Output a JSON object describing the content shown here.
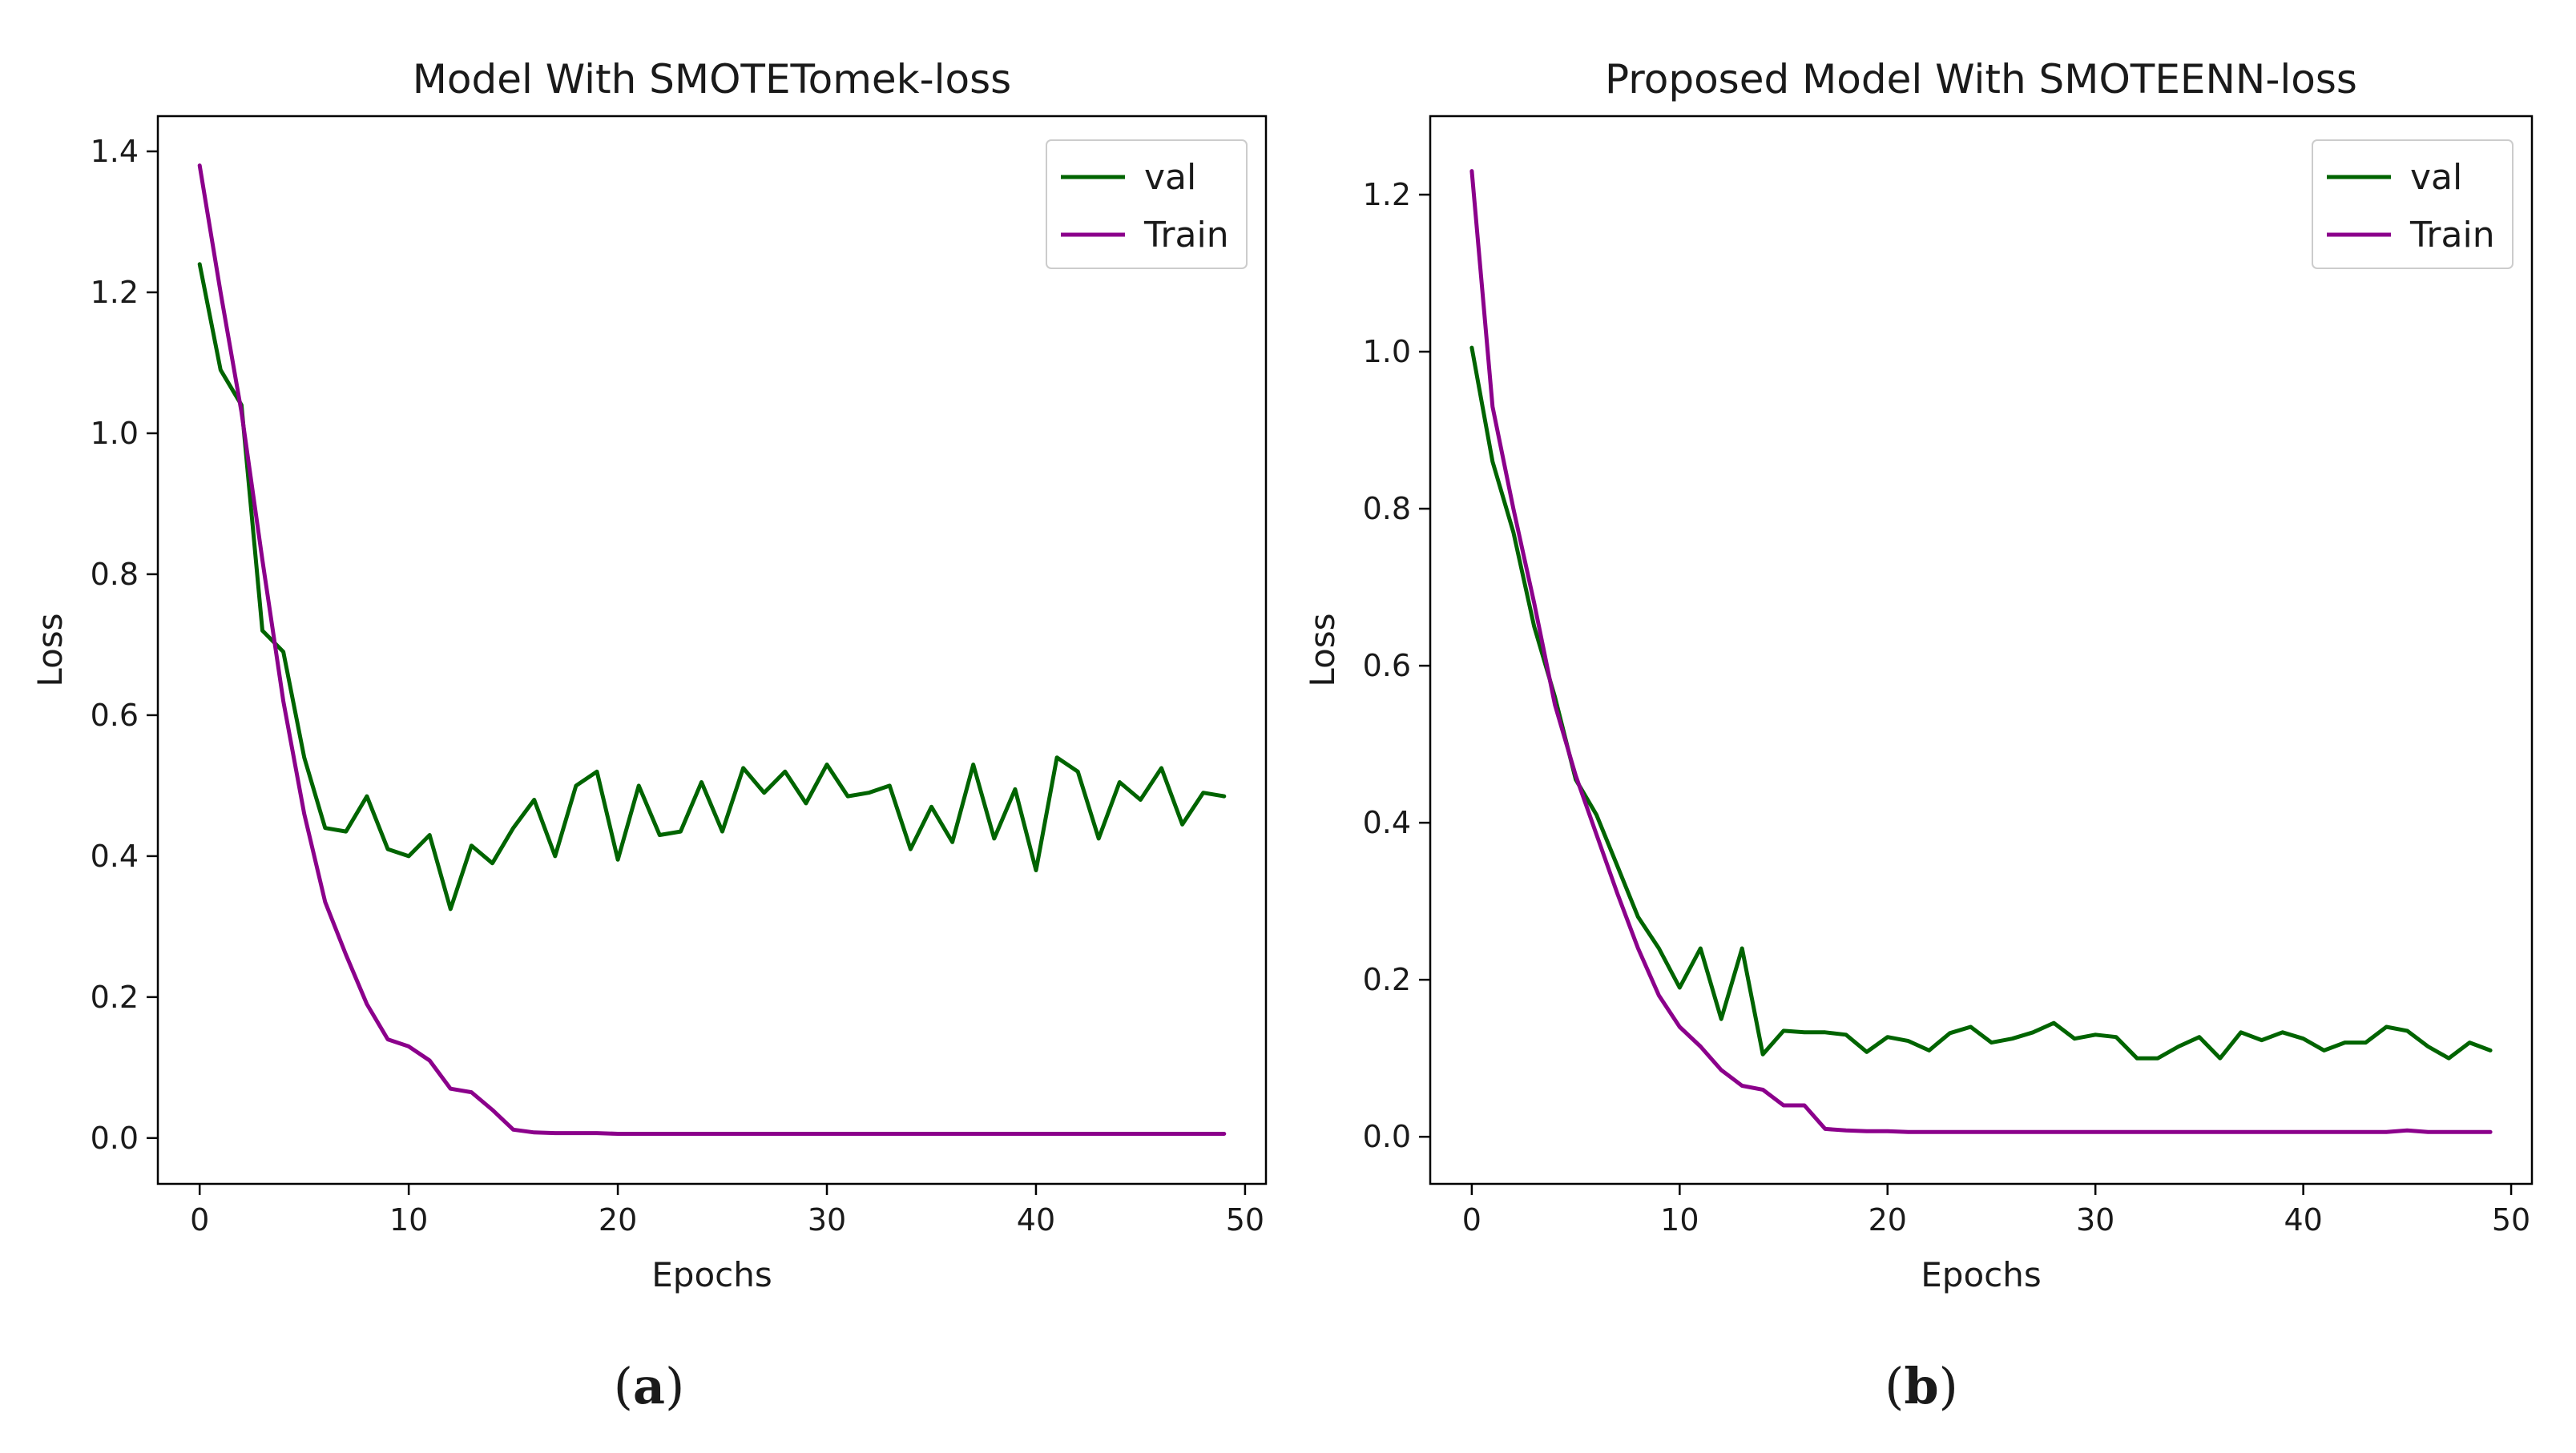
{
  "colors": {
    "val": "#006400",
    "train": "#8b008b",
    "axis": "#000000"
  },
  "chart_data": [
    {
      "id": "a",
      "type": "line",
      "title": "Model With SMOTETomek-loss",
      "xlabel": "Epochs",
      "ylabel": "Loss",
      "xlim": [
        -2,
        51
      ],
      "ylim": [
        -0.065,
        1.45
      ],
      "xticks": [
        0,
        10,
        20,
        30,
        40,
        50
      ],
      "xtick_labels": [
        "0",
        "10",
        "20",
        "30",
        "40",
        "50"
      ],
      "yticks": [
        0.0,
        0.2,
        0.4,
        0.6,
        0.8,
        1.0,
        1.2,
        1.4
      ],
      "ytick_labels": [
        "0.0",
        "0.2",
        "0.4",
        "0.6",
        "0.8",
        "1.0",
        "1.2",
        "1.4"
      ],
      "legend_position": "top-right",
      "caption_open": "(",
      "caption_letter": "a",
      "caption_close": ")",
      "series": [
        {
          "name": "val",
          "color": "#006400",
          "values": [
            1.24,
            1.09,
            1.04,
            0.72,
            0.69,
            0.54,
            0.44,
            0.435,
            0.485,
            0.41,
            0.4,
            0.43,
            0.325,
            0.415,
            0.39,
            0.44,
            0.48,
            0.4,
            0.5,
            0.52,
            0.395,
            0.5,
            0.43,
            0.435,
            0.505,
            0.435,
            0.525,
            0.49,
            0.52,
            0.475,
            0.53,
            0.485,
            0.49,
            0.5,
            0.41,
            0.47,
            0.42,
            0.53,
            0.425,
            0.495,
            0.38,
            0.54,
            0.52,
            0.425,
            0.505,
            0.48,
            0.525,
            0.445,
            0.49,
            0.485
          ]
        },
        {
          "name": "Train",
          "color": "#8b008b",
          "values": [
            1.38,
            1.2,
            1.03,
            0.82,
            0.62,
            0.46,
            0.335,
            0.26,
            0.19,
            0.14,
            0.13,
            0.11,
            0.07,
            0.065,
            0.04,
            0.012,
            0.008,
            0.007,
            0.007,
            0.007,
            0.006,
            0.006,
            0.006,
            0.006,
            0.006,
            0.006,
            0.006,
            0.006,
            0.006,
            0.006,
            0.006,
            0.006,
            0.006,
            0.006,
            0.006,
            0.006,
            0.006,
            0.006,
            0.006,
            0.006,
            0.006,
            0.006,
            0.006,
            0.006,
            0.006,
            0.006,
            0.006,
            0.006,
            0.006,
            0.006
          ]
        }
      ]
    },
    {
      "id": "b",
      "type": "line",
      "title": "Proposed Model With SMOTEENN-loss",
      "xlabel": "Epochs",
      "ylabel": "Loss",
      "xlim": [
        -2,
        51
      ],
      "ylim": [
        -0.06,
        1.3
      ],
      "xticks": [
        0,
        10,
        20,
        30,
        40,
        50
      ],
      "xtick_labels": [
        "0",
        "10",
        "20",
        "30",
        "40",
        "50"
      ],
      "yticks": [
        0.0,
        0.2,
        0.4,
        0.6,
        0.8,
        1.0,
        1.2
      ],
      "ytick_labels": [
        "0.0",
        "0.2",
        "0.4",
        "0.6",
        "0.8",
        "1.0",
        "1.2"
      ],
      "legend_position": "top-right",
      "caption_open": "(",
      "caption_letter": "b",
      "caption_close": ")",
      "series": [
        {
          "name": "val",
          "color": "#006400",
          "values": [
            1.005,
            0.86,
            0.77,
            0.65,
            0.56,
            0.455,
            0.41,
            0.345,
            0.28,
            0.24,
            0.19,
            0.24,
            0.15,
            0.24,
            0.105,
            0.135,
            0.133,
            0.133,
            0.13,
            0.108,
            0.127,
            0.122,
            0.11,
            0.132,
            0.14,
            0.12,
            0.125,
            0.133,
            0.145,
            0.125,
            0.13,
            0.127,
            0.1,
            0.1,
            0.115,
            0.127,
            0.1,
            0.133,
            0.123,
            0.133,
            0.125,
            0.11,
            0.12,
            0.12,
            0.14,
            0.135,
            0.115,
            0.1,
            0.12,
            0.11
          ]
        },
        {
          "name": "Train",
          "color": "#8b008b",
          "values": [
            1.23,
            0.93,
            0.8,
            0.68,
            0.55,
            0.46,
            0.385,
            0.31,
            0.24,
            0.18,
            0.14,
            0.115,
            0.085,
            0.065,
            0.06,
            0.04,
            0.04,
            0.01,
            0.008,
            0.007,
            0.007,
            0.006,
            0.006,
            0.006,
            0.006,
            0.006,
            0.006,
            0.006,
            0.006,
            0.006,
            0.006,
            0.006,
            0.006,
            0.006,
            0.006,
            0.006,
            0.006,
            0.006,
            0.006,
            0.006,
            0.006,
            0.006,
            0.006,
            0.006,
            0.006,
            0.008,
            0.006,
            0.006,
            0.006,
            0.006
          ]
        }
      ]
    }
  ]
}
